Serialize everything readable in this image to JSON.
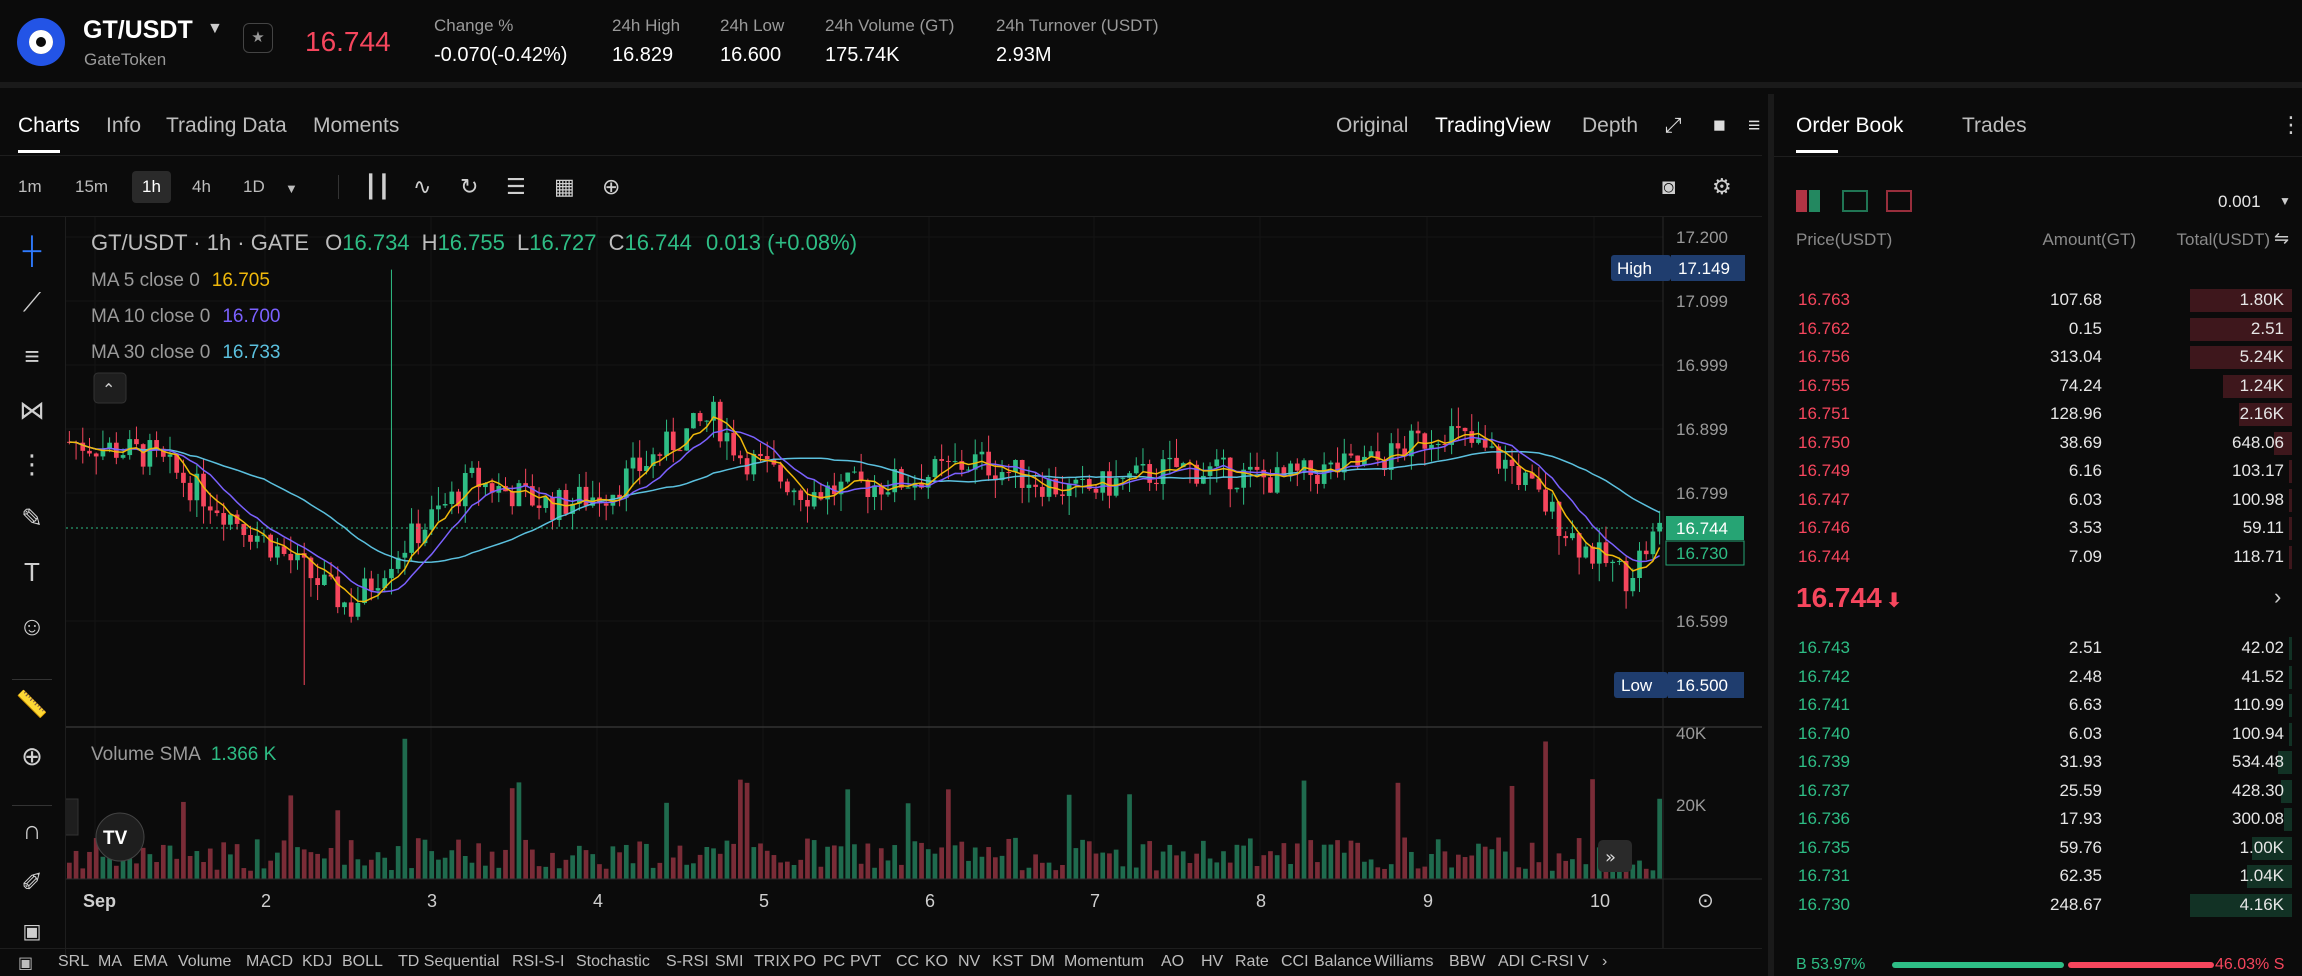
{
  "header": {
    "pair": "GT/USDT",
    "sub": "GateToken",
    "last_price": "16.744",
    "stats": [
      {
        "label": "Change %",
        "value": "-0.070(-0.42%)",
        "color": "#f6465d"
      },
      {
        "label": "24h High",
        "value": "16.829"
      },
      {
        "label": "24h Low",
        "value": "16.600"
      },
      {
        "label": "24h Volume (GT)",
        "value": "175.74K"
      },
      {
        "label": "24h Turnover (USDT)",
        "value": "2.93M"
      }
    ]
  },
  "chart_tabs": [
    "Charts",
    "Info",
    "Trading Data",
    "Moments"
  ],
  "view_tabs": [
    "Original",
    "TradingView",
    "Depth"
  ],
  "timeframes": [
    "1m",
    "15m",
    "1h",
    "4h",
    "1D"
  ],
  "chart_legend": {
    "title": "GT/USDT · 1h · GATE",
    "o_label": "O",
    "o": "16.734",
    "h_label": "H",
    "h": "16.755",
    "l_label": "L",
    "l": "16.727",
    "c_label": "C",
    "c": "16.744",
    "chg": "0.013 (+0.08%)",
    "ma5_label": "MA 5 close 0",
    "ma5": "16.705",
    "ma10_label": "MA 10 close 0",
    "ma10": "16.700",
    "ma30_label": "MA 30 close 0",
    "ma30": "16.733",
    "vol_label": "Volume SMA",
    "vol": "1.366 K"
  },
  "price_axis": [
    "17.200",
    "17.099",
    "16.999",
    "16.899",
    "16.799",
    "16.599"
  ],
  "high_tag": {
    "label": "High",
    "value": "17.149"
  },
  "low_tag": {
    "label": "Low",
    "value": "16.500"
  },
  "last_tag": "16.744",
  "ma_tag": "16.730",
  "vol_axis": [
    "40K",
    "20K"
  ],
  "date_axis": [
    "Sep",
    "2",
    "3",
    "4",
    "5",
    "6",
    "7",
    "8",
    "9",
    "10"
  ],
  "indicators": [
    "SRL",
    "MA",
    "EMA",
    "Volume",
    "MACD",
    "KDJ",
    "BOLL",
    "TD Sequential",
    "RSI-S-I",
    "Stochastic",
    "S-RSI",
    "SMI",
    "TRIX",
    "PO",
    "PC",
    "PVT",
    "CC",
    "KO",
    "NV",
    "KST",
    "DM",
    "Momentum",
    "AO",
    "HV",
    "Rate",
    "CCI",
    "Balance",
    "Williams",
    "BBW",
    "ADI",
    "C-RSI",
    "V"
  ],
  "orderbook": {
    "tabs": [
      "Order Book",
      "Trades"
    ],
    "precision": "0.001",
    "headers": {
      "price": "Price(USDT)",
      "amount": "Amount(GT)",
      "total": "Total(USDT)"
    },
    "asks": [
      {
        "p": "16.763",
        "a": "107.68",
        "t": "1.80K",
        "depth": 0.64
      },
      {
        "p": "16.762",
        "a": "0.15",
        "t": "2.51",
        "depth": 0.64
      },
      {
        "p": "16.756",
        "a": "313.04",
        "t": "5.24K",
        "depth": 0.64
      },
      {
        "p": "16.755",
        "a": "74.24",
        "t": "1.24K",
        "depth": 0.43
      },
      {
        "p": "16.751",
        "a": "128.96",
        "t": "2.16K",
        "depth": 0.33
      },
      {
        "p": "16.750",
        "a": "38.69",
        "t": "648.06",
        "depth": 0.11
      },
      {
        "p": "16.749",
        "a": "6.16",
        "t": "103.17",
        "depth": 0.02
      },
      {
        "p": "16.747",
        "a": "6.03",
        "t": "100.98",
        "depth": 0.02
      },
      {
        "p": "16.746",
        "a": "3.53",
        "t": "59.11",
        "depth": 0.01
      },
      {
        "p": "16.744",
        "a": "7.09",
        "t": "118.71",
        "depth": 0.02
      }
    ],
    "mid": {
      "price": "16.744",
      "arrow": "⬇"
    },
    "bids": [
      {
        "p": "16.743",
        "a": "2.51",
        "t": "42.02",
        "depth": 0.01
      },
      {
        "p": "16.742",
        "a": "2.48",
        "t": "41.52",
        "depth": 0.01
      },
      {
        "p": "16.741",
        "a": "6.63",
        "t": "110.99",
        "depth": 0.02
      },
      {
        "p": "16.740",
        "a": "6.03",
        "t": "100.94",
        "depth": 0.02
      },
      {
        "p": "16.739",
        "a": "31.93",
        "t": "534.48",
        "depth": 0.09
      },
      {
        "p": "16.737",
        "a": "25.59",
        "t": "428.30",
        "depth": 0.07
      },
      {
        "p": "16.736",
        "a": "17.93",
        "t": "300.08",
        "depth": 0.05
      },
      {
        "p": "16.735",
        "a": "59.76",
        "t": "1.00K",
        "depth": 0.25
      },
      {
        "p": "16.731",
        "a": "62.35",
        "t": "1.04K",
        "depth": 0.28
      },
      {
        "p": "16.730",
        "a": "248.67",
        "t": "4.16K",
        "depth": 0.64
      }
    ],
    "ratio": {
      "buy": "B 53.97%",
      "sell": "46.03% S",
      "buy_frac": 0.5397
    }
  },
  "colors": {
    "up": "#2ebd85",
    "down": "#f6465d",
    "ma5": "#f0b90b",
    "ma10": "#7b61ff",
    "ma30": "#5bc0de"
  }
}
